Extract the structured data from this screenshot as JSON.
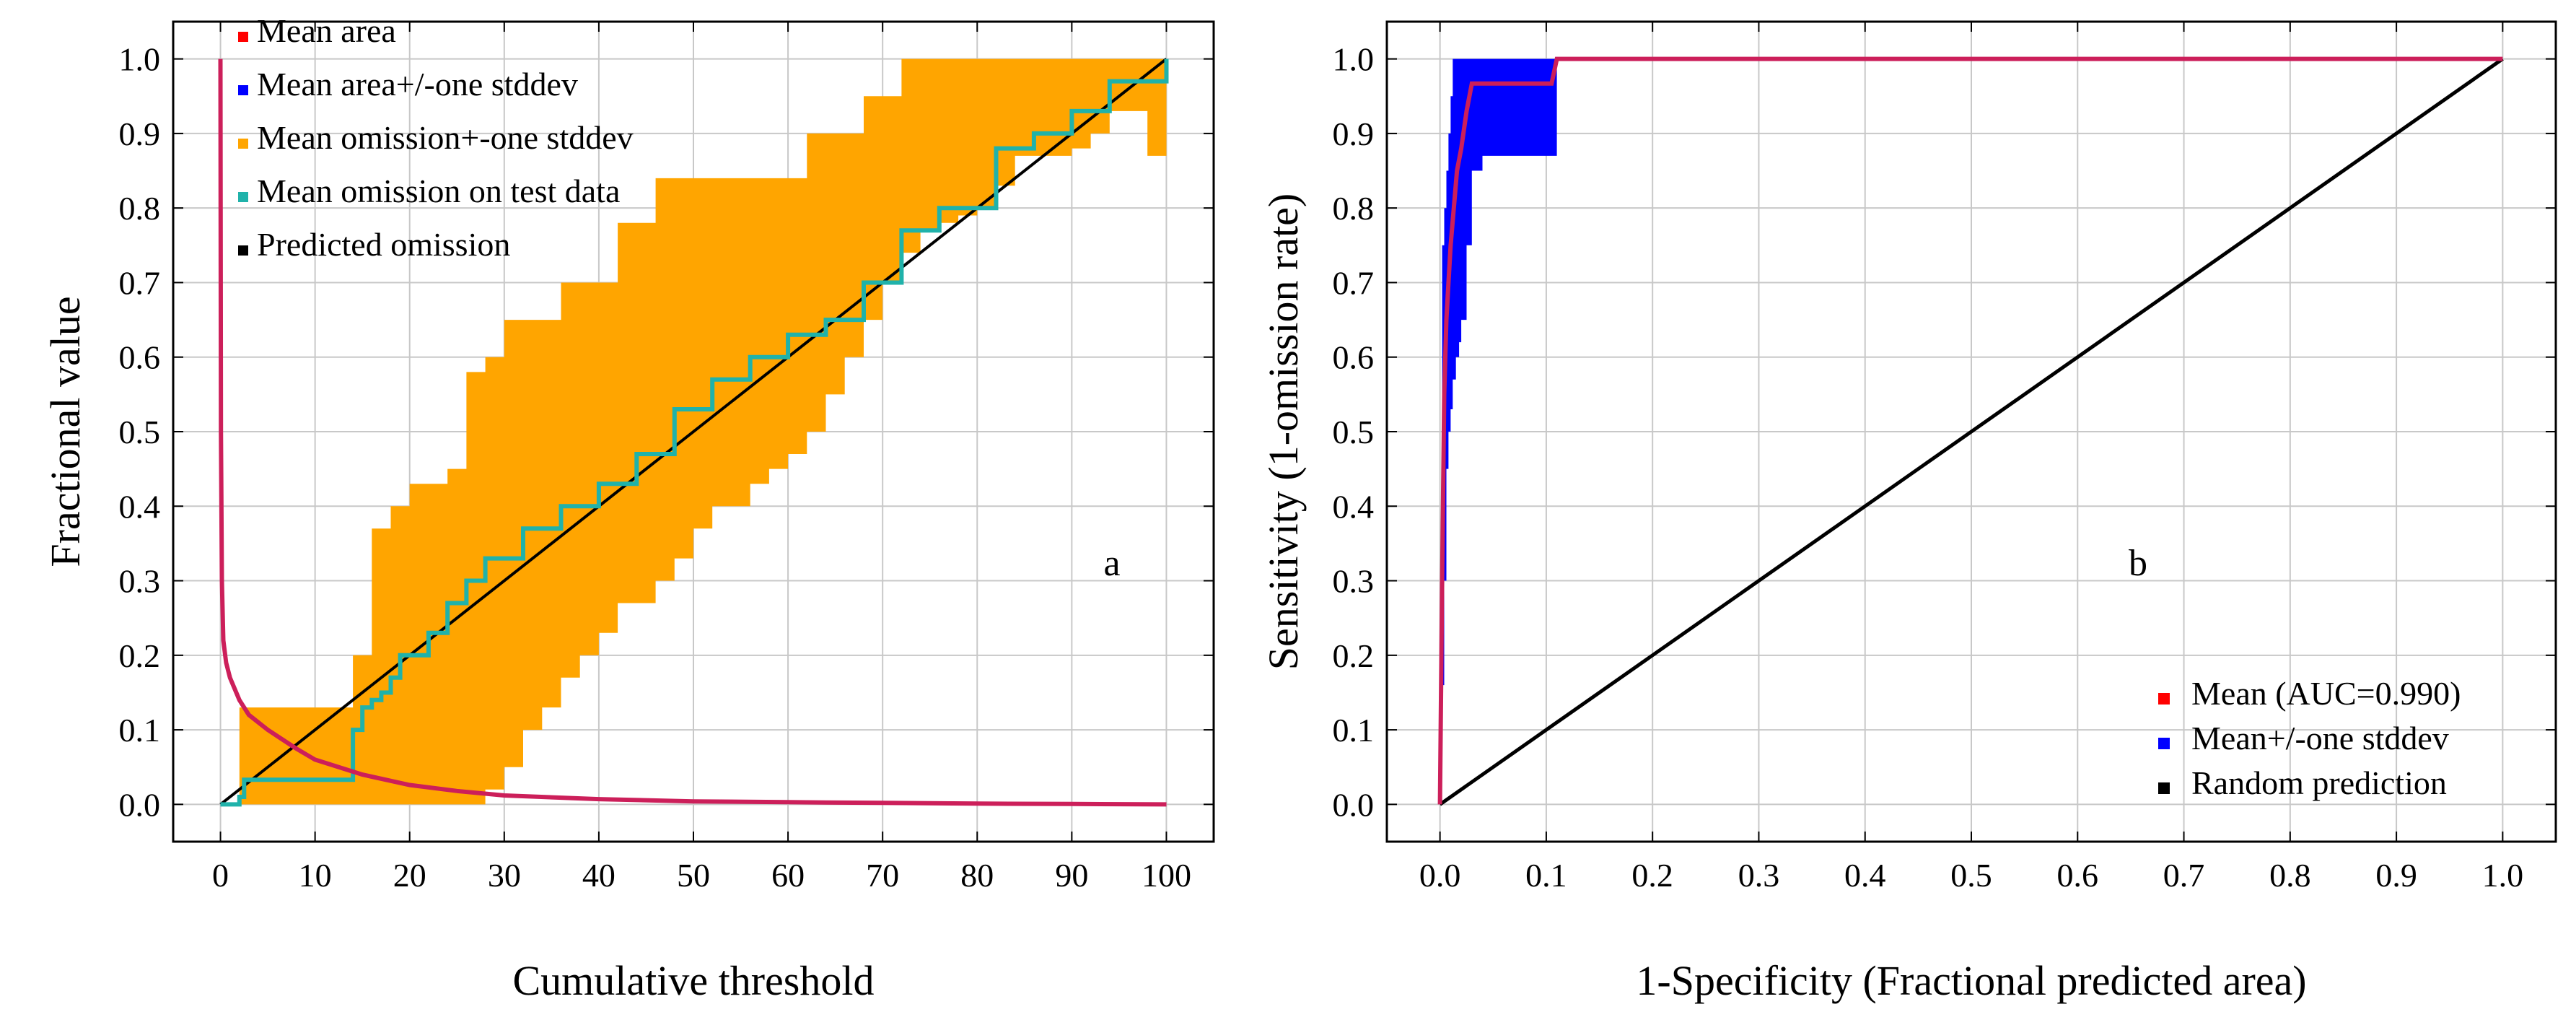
{
  "chart_data": [
    {
      "type": "line",
      "panel_label": "a",
      "title": "",
      "xlabel": "Cumulative threshold",
      "ylabel": "Fractional value",
      "xlim": [
        -5,
        105
      ],
      "ylim": [
        -0.05,
        1.05
      ],
      "grid": true,
      "x_ticks": [
        0,
        10,
        20,
        30,
        40,
        50,
        60,
        70,
        80,
        90,
        100
      ],
      "x_tick_labels": [
        "0",
        "10",
        "20",
        "30",
        "40",
        "50",
        "60",
        "70",
        "80",
        "90",
        "100"
      ],
      "y_ticks": [
        0,
        0.1,
        0.2,
        0.3,
        0.4,
        0.5,
        0.6,
        0.7,
        0.8,
        0.9,
        1.0
      ],
      "y_tick_labels": [
        "0.0",
        "0.1",
        "0.2",
        "0.3",
        "0.4",
        "0.5",
        "0.6",
        "0.7",
        "0.8",
        "0.9",
        "1.0"
      ],
      "legend_position": "top-left",
      "legend": [
        {
          "label": "Mean area",
          "color": "#ff0000"
        },
        {
          "label": "Mean area+/-one stddev",
          "color": "#0000ff"
        },
        {
          "label": "Mean omission+-one stddev",
          "color": "#ffa500"
        },
        {
          "label": "Mean omission on test data",
          "color": "#20b2aa"
        },
        {
          "label": "Predicted omission",
          "color": "#000000"
        }
      ],
      "series": {
        "predicted_omission": {
          "color": "#000000",
          "x": [
            0,
            100
          ],
          "y": [
            0,
            1
          ]
        },
        "mean_area": {
          "color": "#cc1f5a",
          "x": [
            0,
            0.05,
            0.15,
            0.3,
            0.6,
            1,
            2,
            3,
            5,
            8,
            10,
            15,
            20,
            25,
            30,
            40,
            50,
            60,
            70,
            80,
            90,
            100
          ],
          "y": [
            1.0,
            0.5,
            0.3,
            0.22,
            0.19,
            0.17,
            0.14,
            0.12,
            0.1,
            0.075,
            0.06,
            0.04,
            0.026,
            0.018,
            0.012,
            0.007,
            0.004,
            0.003,
            0.002,
            0.001,
            0.0005,
            0.0
          ]
        },
        "omission_mean": {
          "color": "#20b2aa",
          "x": [
            0,
            2,
            2.5,
            13,
            14,
            15,
            16,
            17,
            18,
            19,
            20,
            22,
            24,
            26,
            28,
            30,
            32,
            34,
            36,
            38,
            40,
            42,
            44,
            46,
            48,
            50,
            52,
            54,
            56,
            58,
            60,
            62,
            64,
            66,
            68,
            70,
            72,
            74,
            76,
            78,
            80,
            82,
            84,
            86,
            88,
            90,
            92,
            94,
            96,
            98,
            100
          ],
          "y": [
            0,
            0.01,
            0.033,
            0.033,
            0.1,
            0.13,
            0.14,
            0.15,
            0.17,
            0.2,
            0.2,
            0.23,
            0.27,
            0.3,
            0.33,
            0.33,
            0.37,
            0.37,
            0.4,
            0.4,
            0.43,
            0.43,
            0.47,
            0.47,
            0.53,
            0.53,
            0.57,
            0.57,
            0.6,
            0.6,
            0.63,
            0.63,
            0.65,
            0.65,
            0.7,
            0.7,
            0.77,
            0.77,
            0.8,
            0.8,
            0.8,
            0.88,
            0.88,
            0.9,
            0.9,
            0.93,
            0.93,
            0.97,
            0.97,
            0.97,
            1.0
          ]
        },
        "omission_band": {
          "color": "#ffa500",
          "x": [
            0,
            2,
            2.5,
            13,
            14,
            16,
            18,
            20,
            22,
            24,
            26,
            28,
            30,
            32,
            34,
            36,
            38,
            40,
            42,
            44,
            46,
            48,
            50,
            52,
            54,
            56,
            58,
            60,
            62,
            64,
            66,
            68,
            70,
            72,
            74,
            76,
            78,
            80,
            82,
            84,
            86,
            88,
            90,
            92,
            94,
            96,
            98,
            100
          ],
          "y_lower": [
            0,
            0,
            0,
            0,
            0,
            0,
            0,
            0,
            0,
            0,
            0,
            0.02,
            0.05,
            0.1,
            0.13,
            0.17,
            0.2,
            0.23,
            0.27,
            0.27,
            0.3,
            0.33,
            0.37,
            0.4,
            0.4,
            0.43,
            0.45,
            0.47,
            0.5,
            0.55,
            0.6,
            0.65,
            0.7,
            0.74,
            0.77,
            0.78,
            0.79,
            0.8,
            0.83,
            0.87,
            0.87,
            0.87,
            0.88,
            0.9,
            0.93,
            0.93,
            0.87,
            0.87
          ],
          "y_upper": [
            0,
            0.13,
            0.13,
            0.13,
            0.2,
            0.37,
            0.4,
            0.43,
            0.43,
            0.45,
            0.58,
            0.6,
            0.65,
            0.65,
            0.65,
            0.7,
            0.7,
            0.7,
            0.78,
            0.78,
            0.84,
            0.84,
            0.84,
            0.84,
            0.84,
            0.84,
            0.84,
            0.84,
            0.9,
            0.9,
            0.9,
            0.95,
            0.95,
            1.0,
            1.0,
            1.0,
            1.0,
            1.0,
            1.0,
            1.0,
            1.0,
            1.0,
            1.0,
            1.0,
            1.0,
            1.0,
            1.0,
            1.0
          ]
        }
      }
    },
    {
      "type": "line",
      "panel_label": "b",
      "title": "",
      "xlabel": "1-Specificity (Fractional predicted area)",
      "ylabel": "Sensitivity (1-omission rate)",
      "xlim": [
        -0.05,
        1.05
      ],
      "ylim": [
        -0.05,
        1.05
      ],
      "grid": true,
      "x_ticks": [
        0,
        0.1,
        0.2,
        0.3,
        0.4,
        0.5,
        0.6,
        0.7,
        0.8,
        0.9,
        1.0
      ],
      "x_tick_labels": [
        "0.0",
        "0.1",
        "0.2",
        "0.3",
        "0.4",
        "0.5",
        "0.6",
        "0.7",
        "0.8",
        "0.9",
        "1.0"
      ],
      "y_ticks": [
        0,
        0.1,
        0.2,
        0.3,
        0.4,
        0.5,
        0.6,
        0.7,
        0.8,
        0.9,
        1.0
      ],
      "y_tick_labels": [
        "0.0",
        "0.1",
        "0.2",
        "0.3",
        "0.4",
        "0.5",
        "0.6",
        "0.7",
        "0.8",
        "0.9",
        "1.0"
      ],
      "legend_position": "bottom-right",
      "legend": [
        {
          "label": "Mean (AUC=0.990)",
          "color": "#ff0000"
        },
        {
          "label": "Mean+/-one stddev",
          "color": "#0000ff"
        },
        {
          "label": "Random prediction",
          "color": "#000000"
        }
      ],
      "series": {
        "random_prediction": {
          "color": "#000000",
          "x": [
            0,
            1
          ],
          "y": [
            0,
            1
          ]
        },
        "std_band": {
          "color": "#0000ff",
          "x": [
            0,
            0.002,
            0.004,
            0.006,
            0.008,
            0.01,
            0.012,
            0.015,
            0.018,
            0.02,
            0.025,
            0.03,
            0.04,
            0.05,
            0.06,
            0.07,
            0.08,
            0.09,
            0.1,
            0.105,
            0.11,
            1.0
          ],
          "y_lower": [
            0,
            0.16,
            0.3,
            0.45,
            0.5,
            0.53,
            0.57,
            0.6,
            0.62,
            0.65,
            0.75,
            0.85,
            0.87,
            0.87,
            0.87,
            0.87,
            0.87,
            0.87,
            0.87,
            0.87,
            1.0,
            1.0
          ],
          "y_upper": [
            0,
            0.75,
            0.8,
            0.85,
            0.9,
            0.95,
            1.0,
            1.0,
            1.0,
            1.0,
            1.0,
            1.0,
            1.0,
            1.0,
            1.0,
            1.0,
            1.0,
            1.0,
            1.0,
            1.0,
            1.0,
            1.0
          ]
        },
        "mean_roc": {
          "color": "#cc1f5a",
          "x": [
            0,
            0.002,
            0.004,
            0.006,
            0.008,
            0.01,
            0.013,
            0.016,
            0.02,
            0.025,
            0.03,
            0.04,
            0.05,
            0.06,
            0.07,
            0.08,
            0.09,
            0.1,
            0.105,
            0.11,
            0.2,
            0.4,
            0.6,
            0.8,
            1.0
          ],
          "y": [
            0,
            0.3,
            0.55,
            0.65,
            0.7,
            0.75,
            0.8,
            0.85,
            0.88,
            0.93,
            0.967,
            0.967,
            0.967,
            0.967,
            0.967,
            0.967,
            0.967,
            0.967,
            0.967,
            1.0,
            1.0,
            1.0,
            1.0,
            1.0,
            1.0
          ]
        }
      }
    }
  ]
}
